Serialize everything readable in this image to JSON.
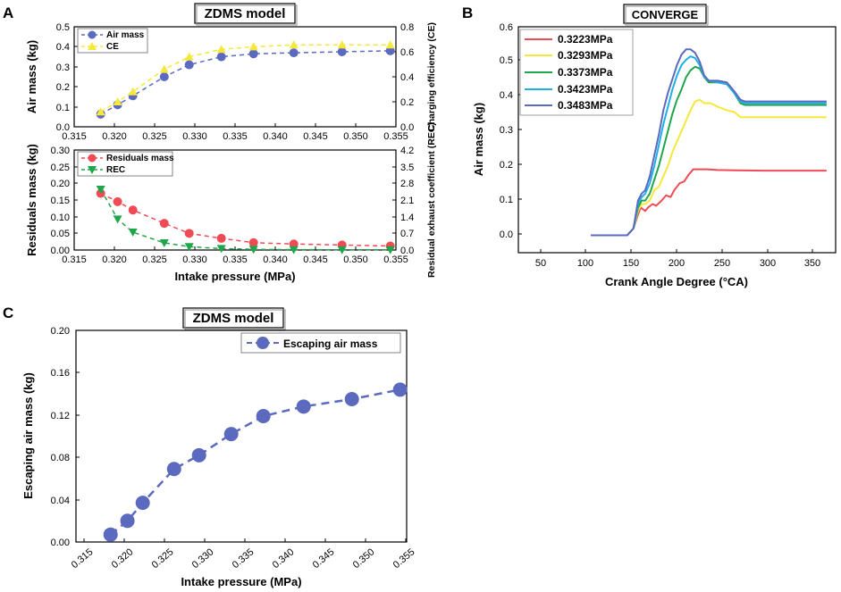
{
  "panels": {
    "A": {
      "label": "A",
      "title": "ZDMS model",
      "top": {
        "x_range": [
          0.315,
          0.355
        ],
        "y_range": [
          0,
          0.5
        ],
        "y2_range": [
          0,
          0.8
        ],
        "x_ticks": [
          "0.315",
          "0.320",
          "0.325",
          "0.330",
          "0.335",
          "0.340",
          "0.345",
          "0.350",
          "0.355"
        ],
        "y_ticks": [
          "0.0",
          "0.1",
          "0.2",
          "0.3",
          "0.4",
          "0.5"
        ],
        "y2_ticks": [
          "0.0",
          "0.2",
          "0.4",
          "0.6",
          "0.8"
        ],
        "ylabel": "Air mass (kg)",
        "y2label": "Charging efficiency (CE)",
        "legend": [
          "Air mass",
          "CE"
        ]
      },
      "bottom": {
        "x_range": [
          0.315,
          0.355
        ],
        "y_range": [
          0,
          0.3
        ],
        "y2_range": [
          0,
          4.2
        ],
        "x_ticks": [
          "0.315",
          "0.320",
          "0.325",
          "0.330",
          "0.335",
          "0.340",
          "0.345",
          "0.350",
          "0.355"
        ],
        "y_ticks": [
          "0.00",
          "0.05",
          "0.10",
          "0.15",
          "0.20",
          "0.25",
          "0.30"
        ],
        "y2_ticks": [
          "0.0",
          "0.7",
          "1.4",
          "2.1",
          "2.8",
          "3.5",
          "4.2"
        ],
        "xlabel": "Intake pressure (MPa)",
        "ylabel": "Residuals mass (kg)",
        "y2label": "Residual exhaust coefficient (REC)",
        "legend": [
          "Residuals mass",
          "REC"
        ]
      }
    },
    "B": {
      "label": "B",
      "title": "CONVERGE",
      "x_range": [
        20,
        370
      ],
      "y_range": [
        -0.05,
        0.6
      ],
      "x_ticks": [
        "50",
        "100",
        "150",
        "200",
        "250",
        "300",
        "350"
      ],
      "y_ticks": [
        "0.0",
        "0.1",
        "0.2",
        "0.3",
        "0.4",
        "0.5",
        "0.6"
      ],
      "xlabel": "Crank Angle Degree (°CA)",
      "ylabel": "Air mass (kg)",
      "legend": [
        "0.3223MPa",
        "0.3293MPa",
        "0.3373MPa",
        "0.3423MPa",
        "0.3483MPa"
      ]
    },
    "C": {
      "label": "C",
      "title": "ZDMS model",
      "x_range": [
        0.315,
        0.356
      ],
      "y_range": [
        0,
        0.2
      ],
      "x_ticks": [
        "0.315",
        "0.320",
        "0.325",
        "0.330",
        "0.335",
        "0.340",
        "0.345",
        "0.350",
        "0.355"
      ],
      "y_ticks": [
        "0.00",
        "0.04",
        "0.08",
        "0.12",
        "0.16",
        "0.20"
      ],
      "xlabel": "Intake pressure (MPa)",
      "ylabel": "Escaping air mass (kg)",
      "legend": [
        "Escaping air mass"
      ]
    }
  },
  "chart_data": [
    {
      "type": "scatter",
      "title": "ZDMS model (A, upper)",
      "xlabel": "",
      "ylabel": "Air mass (kg)",
      "y2label": "Charging efficiency (CE)",
      "xlim": [
        0.315,
        0.355
      ],
      "ylim": [
        0,
        0.5
      ],
      "y2lim": [
        0,
        0.8
      ],
      "x": [
        0.3183,
        0.3204,
        0.3223,
        0.3262,
        0.3293,
        0.3333,
        0.3373,
        0.3423,
        0.3483,
        0.3543
      ],
      "series": [
        {
          "name": "Air mass",
          "axis": "left",
          "color": "#5b6abf",
          "marker": "circle",
          "values": [
            0.063,
            0.11,
            0.155,
            0.25,
            0.31,
            0.35,
            0.365,
            0.37,
            0.375,
            0.38
          ]
        },
        {
          "name": "CE",
          "axis": "right",
          "color": "#f5e83a",
          "marker": "triangle-up",
          "values": [
            0.12,
            0.2,
            0.28,
            0.46,
            0.56,
            0.62,
            0.64,
            0.655,
            0.655,
            0.655
          ]
        }
      ]
    },
    {
      "type": "scatter",
      "title": "ZDMS model (A, lower)",
      "xlabel": "Intake pressure (MPa)",
      "ylabel": "Residuals mass (kg)",
      "y2label": "Residual exhaust coefficient (REC)",
      "xlim": [
        0.315,
        0.355
      ],
      "ylim": [
        0,
        0.3
      ],
      "y2lim": [
        0,
        4.2
      ],
      "x": [
        0.3183,
        0.3204,
        0.3223,
        0.3262,
        0.3293,
        0.3333,
        0.3373,
        0.3423,
        0.3483,
        0.3543
      ],
      "series": [
        {
          "name": "Residuals mass",
          "axis": "left",
          "color": "#f04a55",
          "marker": "circle",
          "values": [
            0.17,
            0.145,
            0.12,
            0.08,
            0.05,
            0.035,
            0.022,
            0.018,
            0.015,
            0.012
          ]
        },
        {
          "name": "REC",
          "axis": "right",
          "color": "#1fa64a",
          "marker": "triangle-down",
          "values": [
            2.55,
            1.3,
            0.75,
            0.3,
            0.14,
            0.06,
            0.03,
            0.015,
            0.01,
            0.01
          ]
        }
      ]
    },
    {
      "type": "line",
      "title": "CONVERGE",
      "xlabel": "Crank Angle Degree (°CA)",
      "ylabel": "Air mass (kg)",
      "xlim": [
        20,
        370
      ],
      "ylim": [
        -0.05,
        0.6
      ],
      "series": [
        {
          "name": "0.3223MPa",
          "color": "#f04a55",
          "x": [
            100,
            140,
            147,
            152,
            155,
            160,
            163,
            168,
            172,
            178,
            183,
            188,
            192,
            198,
            203,
            208,
            213,
            220,
            228,
            240,
            260,
            290,
            330,
            360
          ],
          "values": [
            0.0,
            0.0,
            0.02,
            0.06,
            0.08,
            0.07,
            0.08,
            0.09,
            0.085,
            0.1,
            0.115,
            0.11,
            0.13,
            0.15,
            0.155,
            0.175,
            0.19,
            0.19,
            0.19,
            0.188,
            0.187,
            0.186,
            0.186,
            0.186
          ]
        },
        {
          "name": "0.3293MPa",
          "color": "#f5e83a",
          "x": [
            100,
            140,
            147,
            152,
            156,
            160,
            165,
            170,
            175,
            180,
            185,
            190,
            195,
            200,
            205,
            210,
            215,
            220,
            225,
            232,
            240,
            250,
            258,
            265,
            270,
            290,
            330,
            360
          ],
          "values": [
            0.0,
            0.0,
            0.02,
            0.07,
            0.09,
            0.09,
            0.1,
            0.13,
            0.14,
            0.17,
            0.2,
            0.24,
            0.27,
            0.3,
            0.33,
            0.36,
            0.385,
            0.39,
            0.38,
            0.38,
            0.37,
            0.36,
            0.355,
            0.34,
            0.34,
            0.34,
            0.34,
            0.34
          ]
        },
        {
          "name": "0.3373MPa",
          "color": "#1fa64a",
          "x": [
            100,
            140,
            147,
            152,
            156,
            160,
            165,
            170,
            175,
            180,
            185,
            190,
            195,
            200,
            205,
            210,
            215,
            220,
            225,
            230,
            240,
            250,
            258,
            265,
            270,
            290,
            330,
            360
          ],
          "values": [
            0.0,
            0.0,
            0.02,
            0.08,
            0.1,
            0.1,
            0.12,
            0.16,
            0.2,
            0.25,
            0.3,
            0.35,
            0.39,
            0.42,
            0.455,
            0.475,
            0.485,
            0.48,
            0.455,
            0.44,
            0.44,
            0.435,
            0.41,
            0.38,
            0.375,
            0.375,
            0.375,
            0.375
          ]
        },
        {
          "name": "0.3423MPa",
          "color": "#1fb0e6",
          "x": [
            100,
            140,
            147,
            152,
            156,
            160,
            165,
            170,
            175,
            180,
            185,
            190,
            195,
            200,
            205,
            210,
            215,
            220,
            225,
            230,
            240,
            250,
            258,
            265,
            270,
            290,
            330,
            360
          ],
          "values": [
            0.0,
            0.0,
            0.02,
            0.09,
            0.11,
            0.12,
            0.15,
            0.2,
            0.26,
            0.32,
            0.37,
            0.42,
            0.46,
            0.49,
            0.505,
            0.515,
            0.51,
            0.49,
            0.455,
            0.445,
            0.44,
            0.435,
            0.41,
            0.385,
            0.38,
            0.38,
            0.38,
            0.38
          ]
        },
        {
          "name": "0.3483MPa",
          "color": "#5b6abf",
          "x": [
            100,
            140,
            147,
            152,
            156,
            160,
            165,
            170,
            175,
            180,
            185,
            190,
            195,
            200,
            205,
            210,
            215,
            220,
            225,
            230,
            240,
            250,
            258,
            265,
            270,
            290,
            330,
            360
          ],
          "values": [
            0.0,
            0.0,
            0.02,
            0.1,
            0.12,
            0.13,
            0.17,
            0.23,
            0.29,
            0.36,
            0.41,
            0.45,
            0.49,
            0.52,
            0.535,
            0.535,
            0.525,
            0.5,
            0.46,
            0.445,
            0.445,
            0.44,
            0.415,
            0.39,
            0.385,
            0.385,
            0.385,
            0.385
          ]
        }
      ]
    },
    {
      "type": "scatter",
      "title": "ZDMS model (C)",
      "xlabel": "Intake pressure (MPa)",
      "ylabel": "Escaping air mass (kg)",
      "xlim": [
        0.315,
        0.356
      ],
      "ylim": [
        0,
        0.2
      ],
      "x": [
        0.3183,
        0.3204,
        0.3223,
        0.3262,
        0.3293,
        0.3333,
        0.3373,
        0.3423,
        0.3483,
        0.3543
      ],
      "series": [
        {
          "name": "Escaping air mass",
          "color": "#5b6abf",
          "marker": "circle",
          "values": [
            0.007,
            0.02,
            0.037,
            0.069,
            0.082,
            0.102,
            0.119,
            0.128,
            0.135,
            0.144
          ]
        }
      ]
    }
  ]
}
